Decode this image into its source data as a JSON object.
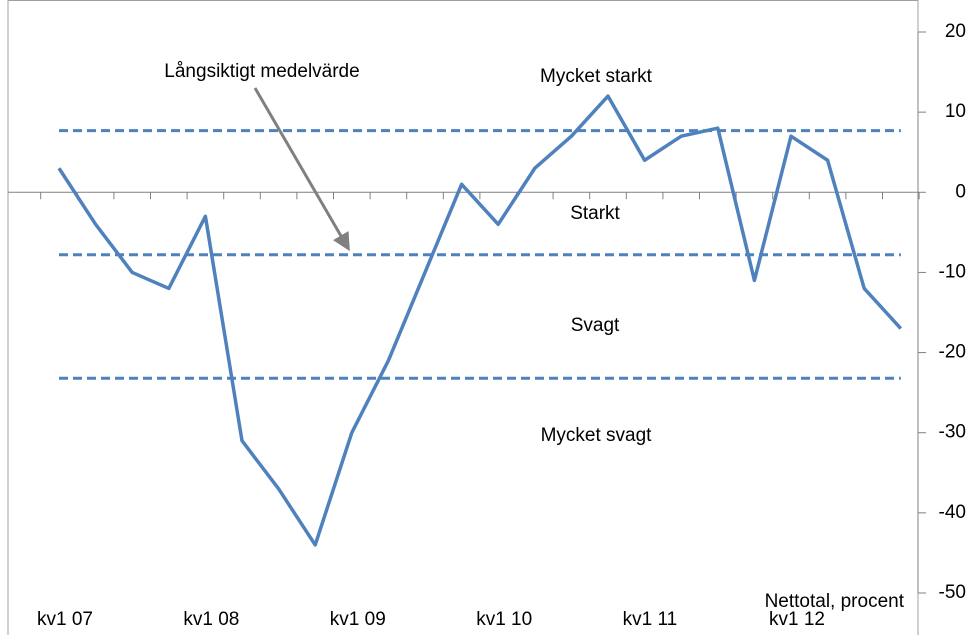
{
  "chart_data": {
    "type": "line",
    "categories": [
      "kv1 07",
      null,
      null,
      null,
      "kv1 08",
      null,
      null,
      null,
      "kv1 09",
      null,
      null,
      null,
      "kv1 10",
      null,
      null,
      null,
      "kv1 11",
      null,
      null,
      null,
      "kv1 12",
      null,
      null,
      null
    ],
    "series": [
      {
        "name": "Nettotal",
        "color": "#4f81bd",
        "values": [
          3,
          -4,
          -10,
          -12,
          -3,
          -31,
          -37,
          -44,
          -30,
          -21,
          -10,
          1,
          -4,
          3,
          7,
          12,
          4,
          7,
          8,
          -11,
          7,
          4,
          -12,
          -17
        ]
      }
    ],
    "reference_lines": [
      {
        "value": 7.7,
        "color": "#4f81bd"
      },
      {
        "value": -7.8,
        "color": "#4f81bd"
      },
      {
        "value": -23.2,
        "color": "#4f81bd"
      }
    ],
    "ylim": [
      -50,
      20
    ],
    "yticks": [
      -50,
      -40,
      -30,
      -20,
      -10,
      0,
      10,
      20
    ],
    "y_axis_side": "right",
    "y_label": "Nettotal, procent",
    "annotations": [
      {
        "text": "Mycket starkt"
      },
      {
        "text": "Starkt"
      },
      {
        "text": "Svagt"
      },
      {
        "text": "Mycket svagt"
      },
      {
        "text": "Långsiktigt medelvärde"
      }
    ]
  }
}
